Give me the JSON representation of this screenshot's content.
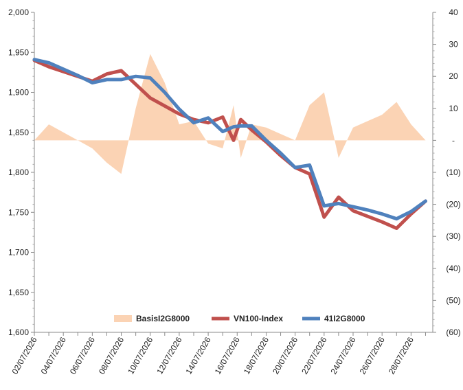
{
  "chart_data": {
    "type": "line+area",
    "title": "",
    "x": [
      "02/07/2026",
      "03/07/2026",
      "04/07/2026",
      "05/07/2026",
      "06/07/2026",
      "07/07/2026",
      "08/07/2026",
      "09/07/2026",
      "10/07/2026",
      "11/07/2026",
      "12/07/2026",
      "13/07/2026",
      "14/07/2026",
      "15/07/2026",
      "16/07/2026",
      "17/07/2026",
      "18/07/2026",
      "19/07/2026",
      "20/07/2026",
      "21/07/2026",
      "22/07/2026",
      "23/07/2026",
      "24/07/2026",
      "25/07/2026",
      "26/07/2026",
      "27/07/2026",
      "28/07/2026",
      "29/07/2026"
    ],
    "x_tick_labels": [
      "02/07/2026",
      "04/07/2026",
      "06/07/2026",
      "08/07/2026",
      "10/07/2026",
      "12/07/2026",
      "14/07/2026",
      "16/07/2026",
      "18/07/2026",
      "20/07/2026",
      "22/07/2026",
      "24/07/2026",
      "26/07/2026",
      "28/07/2026"
    ],
    "y_left": {
      "min": 1600,
      "max": 2000,
      "step": 50,
      "tick_labels": [
        "1,600",
        "1,650",
        "1,700",
        "1,750",
        "1,800",
        "1,850",
        "1,900",
        "1,950",
        "2,000"
      ]
    },
    "y_right": {
      "min": -60,
      "max": 40,
      "step": 10,
      "tick_labels": [
        "(60)",
        "(50)",
        "(40)",
        "(30)",
        "(20)",
        "(10)",
        "-",
        "10",
        "20",
        "30",
        "40"
      ]
    },
    "series": [
      {
        "name": "BasisI2G8000",
        "kind": "area",
        "axis": "right",
        "color": "#fbd3b4",
        "points": [
          [
            "02/07/2026",
            0
          ],
          [
            "03/07/2026",
            5
          ],
          [
            "05/07/2026",
            0
          ],
          [
            "06/07/2026",
            -2.5
          ],
          [
            "07/07/2026",
            -7
          ],
          [
            "08/07/2026",
            -10.5
          ],
          [
            "09/07/2026",
            10
          ],
          [
            "10/07/2026",
            27
          ],
          [
            "11/07/2026",
            18
          ],
          [
            "12/07/2026",
            5
          ],
          [
            "13/07/2026",
            6
          ],
          [
            "14/07/2026",
            -1
          ],
          [
            "15/07/2026",
            -2.5
          ],
          [
            "16/07/2026",
            11
          ],
          [
            "16/07/2026",
            -5.5
          ],
          [
            "17/07/2026",
            5
          ],
          [
            "18/07/2026",
            4
          ],
          [
            "19/07/2026",
            2
          ],
          [
            "20/07/2026",
            0
          ],
          [
            "21/07/2026",
            11
          ],
          [
            "22/07/2026",
            15
          ],
          [
            "23/07/2026",
            -5.5
          ],
          [
            "24/07/2026",
            4
          ],
          [
            "25/07/2026",
            6
          ],
          [
            "26/07/2026",
            8
          ],
          [
            "27/07/2026",
            12
          ],
          [
            "28/07/2026",
            5
          ],
          [
            "29/07/2026",
            0
          ]
        ]
      },
      {
        "name": "VN100-Index",
        "kind": "line",
        "axis": "left",
        "color": "#c0504d",
        "points": [
          [
            "02/07/2026",
            1940
          ],
          [
            "03/07/2026",
            1932
          ],
          [
            "05/07/2026",
            1920
          ],
          [
            "06/07/2026",
            1914
          ],
          [
            "07/07/2026",
            1923
          ],
          [
            "08/07/2026",
            1927
          ],
          [
            "09/07/2026",
            1910
          ],
          [
            "10/07/2026",
            1893
          ],
          [
            "11/07/2026",
            1883
          ],
          [
            "12/07/2026",
            1873
          ],
          [
            "13/07/2026",
            1866
          ],
          [
            "14/07/2026",
            1862
          ],
          [
            "15/07/2026",
            1869
          ],
          [
            "16/07/2026",
            1840
          ],
          [
            "16/07/2026",
            1866
          ],
          [
            "17/07/2026",
            1853
          ],
          [
            "18/07/2026",
            1838
          ],
          [
            "19/07/2026",
            1821
          ],
          [
            "20/07/2026",
            1806
          ],
          [
            "21/07/2026",
            1798
          ],
          [
            "22/07/2026",
            1744
          ],
          [
            "23/07/2026",
            1769
          ],
          [
            "24/07/2026",
            1752
          ],
          [
            "25/07/2026",
            1745
          ],
          [
            "26/07/2026",
            1738
          ],
          [
            "27/07/2026",
            1730
          ],
          [
            "28/07/2026",
            1748
          ],
          [
            "29/07/2026",
            1764
          ]
        ]
      },
      {
        "name": "41I2G8000",
        "kind": "line",
        "axis": "left",
        "color": "#4f81bd",
        "points": [
          [
            "02/07/2026",
            1941
          ],
          [
            "03/07/2026",
            1937
          ],
          [
            "05/07/2026",
            1921
          ],
          [
            "06/07/2026",
            1912
          ],
          [
            "07/07/2026",
            1916
          ],
          [
            "08/07/2026",
            1916
          ],
          [
            "09/07/2026",
            1920
          ],
          [
            "10/07/2026",
            1918
          ],
          [
            "11/07/2026",
            1900
          ],
          [
            "12/07/2026",
            1879
          ],
          [
            "13/07/2026",
            1862
          ],
          [
            "14/07/2026",
            1868
          ],
          [
            "15/07/2026",
            1851
          ],
          [
            "16/07/2026",
            1857
          ],
          [
            "16/07/2026",
            1858
          ],
          [
            "17/07/2026",
            1858
          ],
          [
            "18/07/2026",
            1840
          ],
          [
            "19/07/2026",
            1824
          ],
          [
            "20/07/2026",
            1806
          ],
          [
            "21/07/2026",
            1809
          ],
          [
            "22/07/2026",
            1758
          ],
          [
            "23/07/2026",
            1761
          ],
          [
            "24/07/2026",
            1757
          ],
          [
            "25/07/2026",
            1753
          ],
          [
            "26/07/2026",
            1748
          ],
          [
            "27/07/2026",
            1742
          ],
          [
            "28/07/2026",
            1751
          ],
          [
            "29/07/2026",
            1764
          ]
        ]
      }
    ],
    "legend": {
      "placement": "bottom-inside",
      "entries": [
        "BasisI2G8000",
        "VN100-Index",
        "41I2G8000"
      ]
    },
    "grid": false
  }
}
